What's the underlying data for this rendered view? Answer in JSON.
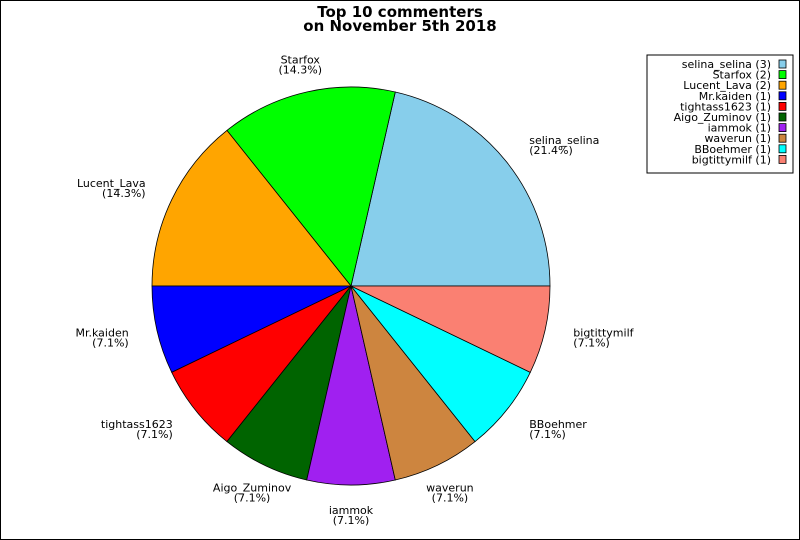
{
  "chart_data": {
    "type": "pie",
    "title": "Top 10 commenters\non November 5th 2018",
    "title_lines": [
      "Top 10 commenters",
      "on November 5th 2018"
    ],
    "start_angle_deg": 0,
    "direction": "counterclockwise",
    "legend_position": "top-right",
    "slices": [
      {
        "label": "selina_selina",
        "value": 3,
        "percent": "21.4%",
        "legend": "selina_selina (3)",
        "color": "#87ceeb"
      },
      {
        "label": "Starfox",
        "value": 2,
        "percent": "14.3%",
        "legend": "Starfox (2)",
        "color": "#00ff00"
      },
      {
        "label": "Lucent_Lava",
        "value": 2,
        "percent": "14.3%",
        "legend": "Lucent_Lava (2)",
        "color": "#ffa500"
      },
      {
        "label": "Mr.kaiden",
        "value": 1,
        "percent": "7.1%",
        "legend": "Mr.kaiden (1)",
        "color": "#0000ff"
      },
      {
        "label": "tightass1623",
        "value": 1,
        "percent": "7.1%",
        "legend": "tightass1623 (1)",
        "color": "#ff0000"
      },
      {
        "label": "Aigo_Zuminov",
        "value": 1,
        "percent": "7.1%",
        "legend": "Aigo_Zuminov (1)",
        "color": "#006400"
      },
      {
        "label": "iammok",
        "value": 1,
        "percent": "7.1%",
        "legend": "iammok (1)",
        "color": "#a020f0"
      },
      {
        "label": "waverun",
        "value": 1,
        "percent": "7.1%",
        "legend": "waverun (1)",
        "color": "#cd853f"
      },
      {
        "label": "BBoehmer",
        "value": 1,
        "percent": "7.1%",
        "legend": "BBoehmer (1)",
        "color": "#00ffff"
      },
      {
        "label": "bigtittymilf",
        "value": 1,
        "percent": "7.1%",
        "legend": "bigtittymilf (1)",
        "color": "#fa8072"
      }
    ]
  }
}
